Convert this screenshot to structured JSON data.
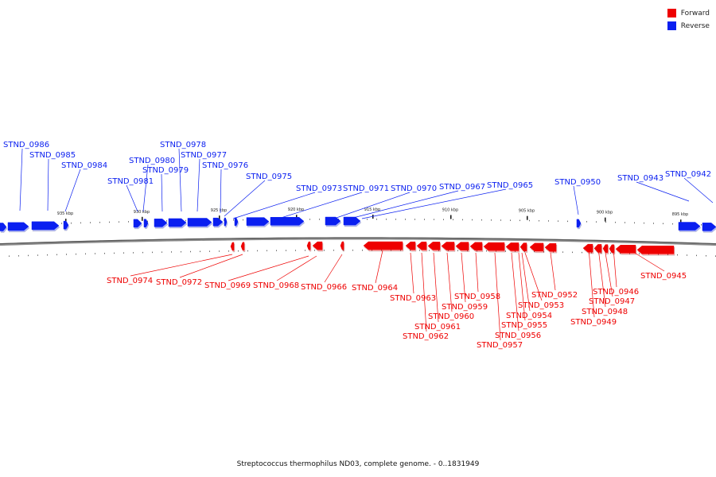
{
  "legend": {
    "forward_label": "Forward",
    "reverse_label": "Reverse",
    "forward_color": "#ee0000",
    "reverse_color": "#0a1ff0"
  },
  "caption": "Streptococcus thermophilus ND03, complete genome. - 0..1831949",
  "scale_labels": [
    "935 kbp",
    "930 kbp",
    "925 kbp",
    "920 kbp",
    "915 kbp",
    "910 kbp",
    "905 kbp",
    "900 kbp",
    "895 kbp"
  ],
  "reverse_labels": [
    "STND_0986",
    "STND_0985",
    "STND_0984",
    "STND_0981",
    "STND_0980",
    "STND_0979",
    "STND_0978",
    "STND_0977",
    "STND_0976",
    "STND_0975",
    "STND_0973",
    "STND_0971",
    "STND_0970",
    "STND_0967",
    "STND_0965",
    "STND_0950",
    "STND_0943",
    "STND_0942"
  ],
  "forward_labels": [
    "STND_0974",
    "STND_0972",
    "STND_0969",
    "STND_0968",
    "STND_0966",
    "STND_0964",
    "STND_0963",
    "STND_0962",
    "STND_0961",
    "STND_0960",
    "STND_0959",
    "STND_0958",
    "STND_0957",
    "STND_0956",
    "STND_0955",
    "STND_0954",
    "STND_0953",
    "STND_0952",
    "STND_0949",
    "STND_0948",
    "STND_0947",
    "STND_0946",
    "STND_0945"
  ]
}
